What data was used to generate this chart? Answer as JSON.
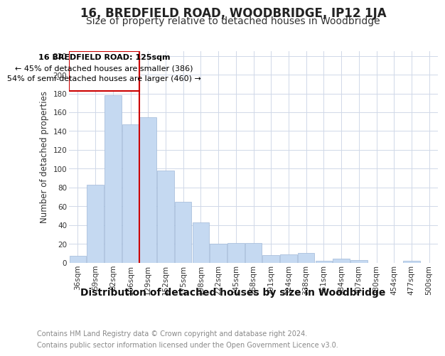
{
  "title": "16, BREDFIELD ROAD, WOODBRIDGE, IP12 1JA",
  "subtitle": "Size of property relative to detached houses in Woodbridge",
  "xlabel": "Distribution of detached houses by size in Woodbridge",
  "ylabel": "Number of detached properties",
  "categories": [
    "36sqm",
    "59sqm",
    "82sqm",
    "106sqm",
    "129sqm",
    "152sqm",
    "175sqm",
    "198sqm",
    "222sqm",
    "245sqm",
    "268sqm",
    "291sqm",
    "314sqm",
    "338sqm",
    "361sqm",
    "384sqm",
    "407sqm",
    "430sqm",
    "454sqm",
    "477sqm",
    "500sqm"
  ],
  "values": [
    7,
    83,
    178,
    147,
    155,
    98,
    65,
    43,
    20,
    21,
    21,
    8,
    9,
    10,
    2,
    4,
    3,
    0,
    0,
    2,
    0
  ],
  "bar_color": "#c5d9f1",
  "bar_edge_color": "#a0b8d8",
  "grid_color": "#d0d8e8",
  "property_line_bar_index": 4,
  "property_line_label": "16 BREDFIELD ROAD: 125sqm",
  "annotation_line1": "← 45% of detached houses are smaller (386)",
  "annotation_line2": "54% of semi-detached houses are larger (460) →",
  "annotation_box_color": "#cc0000",
  "ylim": [
    0,
    225
  ],
  "yticks": [
    0,
    20,
    40,
    60,
    80,
    100,
    120,
    140,
    160,
    180,
    200,
    220
  ],
  "footnote1": "Contains HM Land Registry data © Crown copyright and database right 2024.",
  "footnote2": "Contains public sector information licensed under the Open Government Licence v3.0.",
  "title_fontsize": 12,
  "subtitle_fontsize": 10,
  "xlabel_fontsize": 10,
  "ylabel_fontsize": 8.5,
  "tick_fontsize": 7.5,
  "annotation_fontsize": 8,
  "footnote_fontsize": 7
}
